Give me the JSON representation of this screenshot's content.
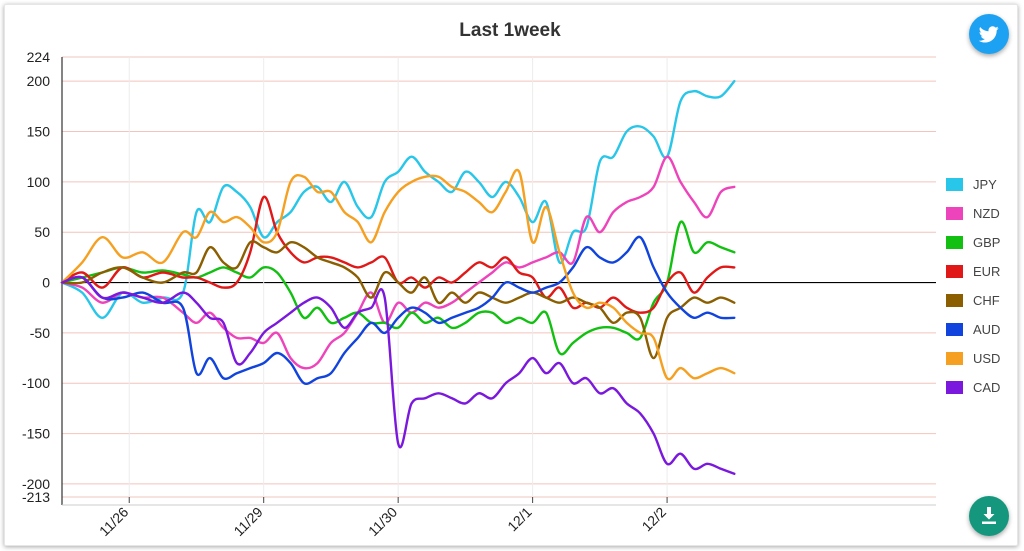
{
  "colors": {
    "twitter": "#1da1f2",
    "download": "#14977d"
  },
  "icons": {
    "twitter": "twitter-icon",
    "download": "download-icon"
  },
  "chart_data": {
    "type": "line",
    "title": "Last 1week",
    "xlabel": "",
    "ylabel": "",
    "xlim": [
      0,
      6.5
    ],
    "ylim": [
      -213,
      224
    ],
    "x_ticks": [
      {
        "x": 0.5,
        "label": "11/26"
      },
      {
        "x": 1.5,
        "label": "11/29"
      },
      {
        "x": 2.5,
        "label": "11/30"
      },
      {
        "x": 3.5,
        "label": "12/1"
      },
      {
        "x": 4.5,
        "label": "12/2"
      }
    ],
    "y_ticks": [
      224,
      200,
      150,
      100,
      50,
      0,
      -50,
      -100,
      -150,
      -200,
      -213
    ],
    "grid": true,
    "legend_position": "right",
    "series": [
      {
        "name": "JPY",
        "color": "#28c6e8",
        "x": [
          0,
          0.15,
          0.3,
          0.45,
          0.6,
          0.75,
          0.9,
          1.0,
          1.1,
          1.2,
          1.3,
          1.4,
          1.5,
          1.6,
          1.7,
          1.8,
          1.9,
          2.0,
          2.1,
          2.2,
          2.3,
          2.4,
          2.5,
          2.6,
          2.7,
          2.8,
          2.9,
          3.0,
          3.1,
          3.2,
          3.3,
          3.4,
          3.5,
          3.6,
          3.7,
          3.8,
          3.9,
          4.0,
          4.1,
          4.2,
          4.3,
          4.4,
          4.5,
          4.6,
          4.7,
          4.8,
          4.9,
          5.0
        ],
        "values": [
          0,
          -10,
          -35,
          -10,
          -20,
          -15,
          -10,
          70,
          60,
          95,
          90,
          75,
          45,
          60,
          70,
          90,
          95,
          80,
          100,
          75,
          65,
          100,
          110,
          125,
          110,
          100,
          90,
          110,
          100,
          85,
          100,
          85,
          60,
          80,
          20,
          50,
          55,
          120,
          125,
          150,
          155,
          145,
          125,
          180,
          190,
          185,
          185,
          200
        ]
      },
      {
        "name": "NZD",
        "color": "#ee44bb",
        "x": [
          0,
          0.15,
          0.3,
          0.45,
          0.6,
          0.75,
          0.9,
          1.0,
          1.1,
          1.2,
          1.3,
          1.4,
          1.5,
          1.6,
          1.7,
          1.8,
          1.9,
          2.0,
          2.1,
          2.2,
          2.3,
          2.4,
          2.5,
          2.6,
          2.7,
          2.8,
          2.9,
          3.0,
          3.1,
          3.2,
          3.3,
          3.4,
          3.5,
          3.6,
          3.7,
          3.8,
          3.9,
          4.0,
          4.1,
          4.2,
          4.3,
          4.4,
          4.5,
          4.6,
          4.7,
          4.8,
          4.9,
          5.0
        ],
        "values": [
          0,
          -5,
          -20,
          -10,
          -15,
          -15,
          -30,
          -40,
          -30,
          -45,
          -55,
          -55,
          -60,
          -50,
          -75,
          -85,
          -80,
          -60,
          -50,
          -30,
          -10,
          -40,
          -20,
          -30,
          -20,
          -25,
          -20,
          -10,
          0,
          10,
          20,
          15,
          20,
          25,
          30,
          20,
          65,
          50,
          70,
          80,
          85,
          95,
          125,
          100,
          80,
          65,
          90,
          95
        ]
      },
      {
        "name": "GBP",
        "color": "#11c011",
        "x": [
          0,
          0.15,
          0.3,
          0.45,
          0.6,
          0.75,
          0.9,
          1.0,
          1.1,
          1.2,
          1.3,
          1.4,
          1.5,
          1.6,
          1.7,
          1.8,
          1.9,
          2.0,
          2.1,
          2.2,
          2.3,
          2.4,
          2.5,
          2.6,
          2.7,
          2.8,
          2.9,
          3.0,
          3.1,
          3.2,
          3.3,
          3.4,
          3.5,
          3.6,
          3.7,
          3.8,
          3.9,
          4.0,
          4.1,
          4.2,
          4.3,
          4.4,
          4.5,
          4.6,
          4.7,
          4.8,
          4.9,
          5.0
        ],
        "values": [
          0,
          5,
          10,
          15,
          10,
          12,
          8,
          5,
          10,
          15,
          10,
          5,
          15,
          10,
          -10,
          -35,
          -25,
          -40,
          -35,
          -30,
          -40,
          -40,
          -45,
          -30,
          -40,
          -35,
          -45,
          -40,
          -30,
          -30,
          -40,
          -35,
          -40,
          -30,
          -70,
          -60,
          -50,
          -45,
          -45,
          -50,
          -55,
          -20,
          0,
          60,
          30,
          40,
          35,
          30
        ]
      },
      {
        "name": "EUR",
        "color": "#e01818",
        "x": [
          0,
          0.15,
          0.3,
          0.45,
          0.6,
          0.75,
          0.9,
          1.0,
          1.1,
          1.2,
          1.3,
          1.4,
          1.5,
          1.6,
          1.7,
          1.8,
          1.9,
          2.0,
          2.1,
          2.2,
          2.3,
          2.4,
          2.5,
          2.6,
          2.7,
          2.8,
          2.9,
          3.0,
          3.1,
          3.2,
          3.3,
          3.4,
          3.5,
          3.6,
          3.7,
          3.8,
          3.9,
          4.0,
          4.1,
          4.2,
          4.3,
          4.4,
          4.5,
          4.6,
          4.7,
          4.8,
          4.9,
          5.0
        ],
        "values": [
          0,
          10,
          -5,
          15,
          5,
          10,
          5,
          5,
          0,
          -5,
          0,
          30,
          85,
          50,
          30,
          20,
          25,
          25,
          20,
          15,
          20,
          25,
          0,
          5,
          -5,
          5,
          0,
          10,
          20,
          15,
          25,
          10,
          5,
          -15,
          -5,
          -25,
          -20,
          -25,
          -15,
          -25,
          -30,
          -25,
          0,
          10,
          -10,
          5,
          15,
          15
        ]
      },
      {
        "name": "CHF",
        "color": "#8b5e00",
        "x": [
          0,
          0.15,
          0.3,
          0.45,
          0.6,
          0.75,
          0.9,
          1.0,
          1.1,
          1.2,
          1.3,
          1.4,
          1.5,
          1.6,
          1.7,
          1.8,
          1.9,
          2.0,
          2.1,
          2.2,
          2.3,
          2.4,
          2.5,
          2.6,
          2.7,
          2.8,
          2.9,
          3.0,
          3.1,
          3.2,
          3.3,
          3.4,
          3.5,
          3.6,
          3.7,
          3.8,
          3.9,
          4.0,
          4.1,
          4.2,
          4.3,
          4.4,
          4.5,
          4.6,
          4.7,
          4.8,
          4.9,
          5.0
        ],
        "values": [
          0,
          0,
          10,
          15,
          5,
          0,
          10,
          10,
          35,
          20,
          15,
          40,
          35,
          30,
          40,
          35,
          25,
          20,
          15,
          5,
          -15,
          10,
          0,
          -10,
          5,
          -20,
          -10,
          -20,
          -10,
          -15,
          -20,
          -15,
          -10,
          -15,
          -20,
          -15,
          -20,
          -25,
          -40,
          -30,
          -35,
          -75,
          -35,
          -25,
          -15,
          -20,
          -15,
          -20
        ]
      },
      {
        "name": "AUD",
        "color": "#1144dd",
        "x": [
          0,
          0.15,
          0.3,
          0.45,
          0.6,
          0.75,
          0.9,
          1.0,
          1.1,
          1.2,
          1.3,
          1.4,
          1.5,
          1.6,
          1.7,
          1.8,
          1.9,
          2.0,
          2.1,
          2.2,
          2.3,
          2.4,
          2.5,
          2.6,
          2.7,
          2.8,
          2.9,
          3.0,
          3.1,
          3.2,
          3.3,
          3.4,
          3.5,
          3.6,
          3.7,
          3.8,
          3.9,
          4.0,
          4.1,
          4.2,
          4.3,
          4.4,
          4.5,
          4.6,
          4.7,
          4.8,
          4.9,
          5.0
        ],
        "values": [
          0,
          5,
          -15,
          -15,
          -10,
          -20,
          -25,
          -90,
          -75,
          -95,
          -90,
          -85,
          -80,
          -70,
          -80,
          -100,
          -95,
          -90,
          -70,
          -55,
          -40,
          -50,
          -35,
          -25,
          -30,
          -40,
          -35,
          -30,
          -25,
          -15,
          0,
          -5,
          -10,
          -5,
          0,
          15,
          35,
          25,
          20,
          30,
          45,
          15,
          -10,
          -25,
          -35,
          -30,
          -35,
          -35
        ]
      },
      {
        "name": "USD",
        "color": "#f5a020",
        "x": [
          0,
          0.15,
          0.3,
          0.45,
          0.6,
          0.75,
          0.9,
          1.0,
          1.1,
          1.2,
          1.3,
          1.4,
          1.5,
          1.6,
          1.7,
          1.8,
          1.9,
          2.0,
          2.1,
          2.2,
          2.3,
          2.4,
          2.5,
          2.6,
          2.7,
          2.8,
          2.9,
          3.0,
          3.1,
          3.2,
          3.3,
          3.4,
          3.5,
          3.6,
          3.7,
          3.8,
          3.9,
          4.0,
          4.1,
          4.2,
          4.3,
          4.4,
          4.5,
          4.6,
          4.7,
          4.8,
          4.9,
          5.0
        ],
        "values": [
          0,
          20,
          45,
          25,
          30,
          20,
          50,
          45,
          70,
          60,
          65,
          55,
          40,
          50,
          100,
          105,
          90,
          90,
          70,
          60,
          40,
          70,
          90,
          100,
          105,
          105,
          95,
          90,
          80,
          70,
          90,
          110,
          40,
          75,
          30,
          -10,
          -25,
          -20,
          -25,
          -40,
          -50,
          -55,
          -95,
          -85,
          -95,
          -90,
          -85,
          -90
        ]
      },
      {
        "name": "CAD",
        "color": "#7a18dd",
        "x": [
          0,
          0.15,
          0.3,
          0.45,
          0.6,
          0.75,
          0.9,
          1.0,
          1.1,
          1.2,
          1.3,
          1.4,
          1.5,
          1.6,
          1.7,
          1.8,
          1.9,
          2.0,
          2.1,
          2.2,
          2.3,
          2.4,
          2.5,
          2.6,
          2.7,
          2.8,
          2.9,
          3.0,
          3.1,
          3.2,
          3.3,
          3.4,
          3.5,
          3.6,
          3.7,
          3.8,
          3.9,
          4.0,
          4.1,
          4.2,
          4.3,
          4.4,
          4.5,
          4.6,
          4.7,
          4.8,
          4.9,
          5.0
        ],
        "values": [
          0,
          5,
          -15,
          -10,
          -15,
          -20,
          -10,
          -20,
          -35,
          -40,
          -80,
          -70,
          -50,
          -40,
          -30,
          -20,
          -15,
          -25,
          -45,
          -30,
          -25,
          -15,
          -160,
          -120,
          -115,
          -110,
          -115,
          -120,
          -110,
          -115,
          -100,
          -90,
          -75,
          -90,
          -80,
          -100,
          -95,
          -110,
          -105,
          -120,
          -130,
          -150,
          -180,
          -170,
          -185,
          -180,
          -185,
          -190
        ]
      }
    ]
  }
}
